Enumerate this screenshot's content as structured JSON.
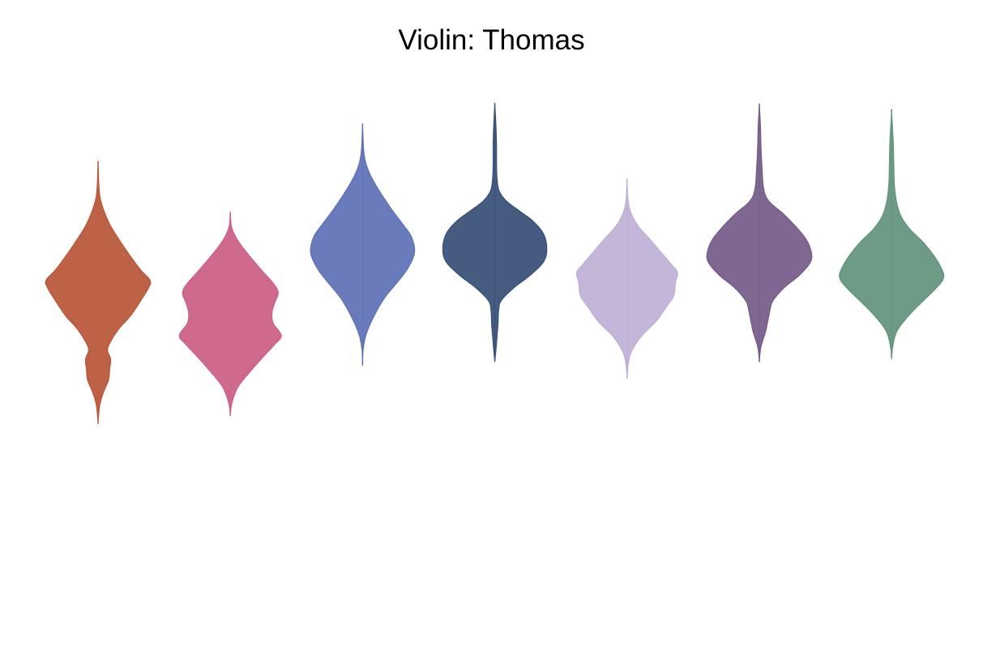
{
  "chart_data": {
    "type": "violin",
    "title": "Violin: Thomas",
    "xlabel": "",
    "ylabel": "",
    "ylim": [
      0,
      100
    ],
    "grid": false,
    "legend": "none",
    "axes_visible": false,
    "series": [
      {
        "color": "#b95a3c",
        "y_min": 33.4,
        "y_max": 83.6,
        "density": [
          [
            33.4,
            0.0
          ],
          [
            36.5,
            0.03
          ],
          [
            39.0,
            0.1
          ],
          [
            41.5,
            0.2
          ],
          [
            43.5,
            0.22
          ],
          [
            45.5,
            0.24
          ],
          [
            47.3,
            0.18
          ],
          [
            49.0,
            0.24
          ],
          [
            51.5,
            0.4
          ],
          [
            54.0,
            0.62
          ],
          [
            57.0,
            0.82
          ],
          [
            59.5,
            0.97
          ],
          [
            61.0,
            1.0
          ],
          [
            63.0,
            0.82
          ],
          [
            66.0,
            0.6
          ],
          [
            69.0,
            0.4
          ],
          [
            72.0,
            0.22
          ],
          [
            75.5,
            0.08
          ],
          [
            78.5,
            0.02
          ],
          [
            83.6,
            0.0
          ]
        ]
      },
      {
        "color": "#cc6288",
        "y_min": 34.8,
        "y_max": 74.0,
        "density": [
          [
            34.8,
            0.0
          ],
          [
            37.0,
            0.03
          ],
          [
            40.0,
            0.14
          ],
          [
            43.0,
            0.37
          ],
          [
            46.0,
            0.63
          ],
          [
            48.5,
            0.86
          ],
          [
            50.2,
            0.98
          ],
          [
            52.5,
            0.83
          ],
          [
            54.5,
            0.8
          ],
          [
            56.5,
            0.85
          ],
          [
            58.5,
            0.92
          ],
          [
            60.2,
            0.84
          ],
          [
            62.5,
            0.64
          ],
          [
            65.0,
            0.43
          ],
          [
            67.5,
            0.23
          ],
          [
            69.5,
            0.1
          ],
          [
            71.5,
            0.02
          ],
          [
            74.0,
            0.0
          ]
        ]
      },
      {
        "color": "#6174b6",
        "y_min": 44.7,
        "y_max": 90.9,
        "density": [
          [
            44.7,
            0.0
          ],
          [
            47.5,
            0.01
          ],
          [
            50.5,
            0.07
          ],
          [
            54.0,
            0.22
          ],
          [
            57.5,
            0.42
          ],
          [
            61.0,
            0.7
          ],
          [
            63.5,
            0.88
          ],
          [
            66.5,
            1.0
          ],
          [
            69.5,
            0.94
          ],
          [
            72.0,
            0.77
          ],
          [
            75.0,
            0.55
          ],
          [
            78.5,
            0.32
          ],
          [
            82.0,
            0.13
          ],
          [
            85.5,
            0.03
          ],
          [
            90.9,
            0.0
          ]
        ]
      },
      {
        "color": "#3b5279",
        "y_min": 45.4,
        "y_max": 95.1,
        "density": [
          [
            45.4,
            0.0
          ],
          [
            47.5,
            0.02
          ],
          [
            50.0,
            0.04
          ],
          [
            52.5,
            0.06
          ],
          [
            55.0,
            0.07
          ],
          [
            57.0,
            0.12
          ],
          [
            59.5,
            0.36
          ],
          [
            62.0,
            0.68
          ],
          [
            64.5,
            0.93
          ],
          [
            67.0,
            1.0
          ],
          [
            70.0,
            0.94
          ],
          [
            72.5,
            0.74
          ],
          [
            74.5,
            0.48
          ],
          [
            76.5,
            0.22
          ],
          [
            78.5,
            0.08
          ],
          [
            81.0,
            0.04
          ],
          [
            84.0,
            0.03
          ],
          [
            87.5,
            0.03
          ],
          [
            91.0,
            0.02
          ],
          [
            95.1,
            0.0
          ]
        ]
      },
      {
        "color": "#c0b2d6",
        "y_min": 42.1,
        "y_max": 80.3,
        "density": [
          [
            42.1,
            0.0
          ],
          [
            44.5,
            0.02
          ],
          [
            47.0,
            0.08
          ],
          [
            50.0,
            0.27
          ],
          [
            53.0,
            0.56
          ],
          [
            56.0,
            0.77
          ],
          [
            58.0,
            0.9
          ],
          [
            60.5,
            0.93
          ],
          [
            62.5,
            0.97
          ],
          [
            64.0,
            0.86
          ],
          [
            66.5,
            0.65
          ],
          [
            69.0,
            0.44
          ],
          [
            71.5,
            0.22
          ],
          [
            74.0,
            0.08
          ],
          [
            76.5,
            0.02
          ],
          [
            80.3,
            0.0
          ]
        ]
      },
      {
        "color": "#775f8a",
        "y_min": 45.4,
        "y_max": 95.0,
        "density": [
          [
            45.4,
            0.0
          ],
          [
            48.0,
            0.03
          ],
          [
            51.0,
            0.12
          ],
          [
            53.5,
            0.17
          ],
          [
            55.5,
            0.21
          ],
          [
            57.0,
            0.26
          ],
          [
            59.5,
            0.47
          ],
          [
            62.0,
            0.77
          ],
          [
            64.5,
            0.98
          ],
          [
            66.5,
            1.0
          ],
          [
            69.0,
            0.9
          ],
          [
            71.5,
            0.7
          ],
          [
            74.0,
            0.46
          ],
          [
            76.5,
            0.18
          ],
          [
            79.0,
            0.08
          ],
          [
            83.0,
            0.05
          ],
          [
            87.0,
            0.03
          ],
          [
            91.0,
            0.02
          ],
          [
            95.0,
            0.0
          ]
        ]
      },
      {
        "color": "#659680",
        "y_min": 45.9,
        "y_max": 93.7,
        "density": [
          [
            45.9,
            0.0
          ],
          [
            48.0,
            0.02
          ],
          [
            51.0,
            0.1
          ],
          [
            54.0,
            0.32
          ],
          [
            57.0,
            0.61
          ],
          [
            59.5,
            0.86
          ],
          [
            61.5,
            1.0
          ],
          [
            63.5,
            0.95
          ],
          [
            66.0,
            0.8
          ],
          [
            68.5,
            0.6
          ],
          [
            71.0,
            0.35
          ],
          [
            73.5,
            0.18
          ],
          [
            76.5,
            0.09
          ],
          [
            80.0,
            0.05
          ],
          [
            84.0,
            0.04
          ],
          [
            88.0,
            0.03
          ],
          [
            93.7,
            0.0
          ]
        ]
      }
    ]
  }
}
